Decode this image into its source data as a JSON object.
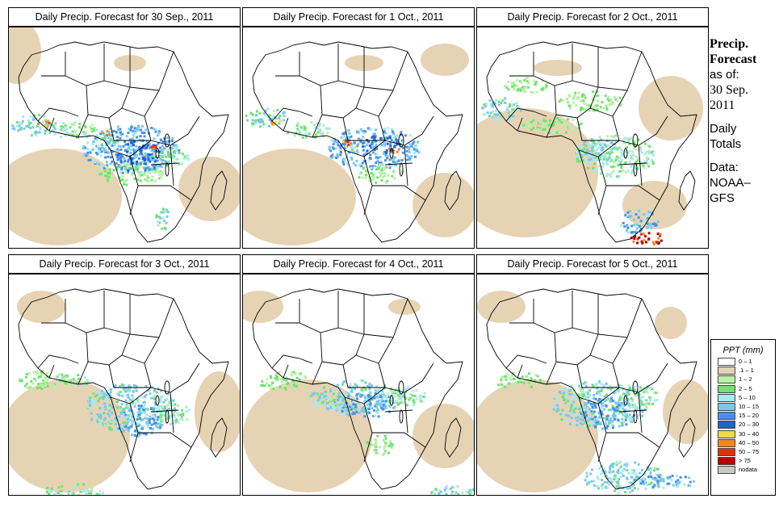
{
  "panels": [
    {
      "title": "Daily Precip. Forecast for  30 Sep., 2011",
      "variant": "a"
    },
    {
      "title": "Daily Precip. Forecast for  1 Oct., 2011",
      "variant": "b"
    },
    {
      "title": "Daily Precip. Forecast for  2 Oct., 2011",
      "variant": "c"
    },
    {
      "title": "Daily Precip. Forecast for  3 Oct., 2011",
      "variant": "d"
    },
    {
      "title": "Daily Precip. Forecast for  4 Oct., 2011",
      "variant": "e"
    },
    {
      "title": "Daily Precip. Forecast for  5 Oct., 2011",
      "variant": "f"
    }
  ],
  "sidebar": {
    "title_line1": "Precip.",
    "title_line2": "Forecast",
    "asof_label": "as of:",
    "date_line1": "30 Sep.",
    "date_line2": "2011",
    "daily_line1": "Daily",
    "daily_line2": "Totals",
    "data_line1": "Data:",
    "data_line2": "NOAA–",
    "data_line3": "GFS"
  },
  "legend": {
    "title": "PPT (mm)",
    "items": [
      {
        "label": "0 – 1",
        "color": "#ffffff"
      },
      {
        "label": ".1 – 1",
        "color": "#e6d3b4"
      },
      {
        "label": "1 – 2",
        "color": "#b8f0a8"
      },
      {
        "label": "2 – 5",
        "color": "#6fe36f"
      },
      {
        "label": "5 – 10",
        "color": "#a8e8f0"
      },
      {
        "label": "10 – 15",
        "color": "#78c8f0"
      },
      {
        "label": "15 – 20",
        "color": "#4a90e8"
      },
      {
        "label": "20 – 30",
        "color": "#2060d8"
      },
      {
        "label": "30 – 40",
        "color": "#f0d850"
      },
      {
        "label": "40 – 50",
        "color": "#f08820"
      },
      {
        "label": "50 – 75",
        "color": "#e03010"
      },
      {
        "label": "> 75",
        "color": "#b80000"
      },
      {
        "label": "nodata",
        "color": "#c8c8c8"
      }
    ]
  }
}
